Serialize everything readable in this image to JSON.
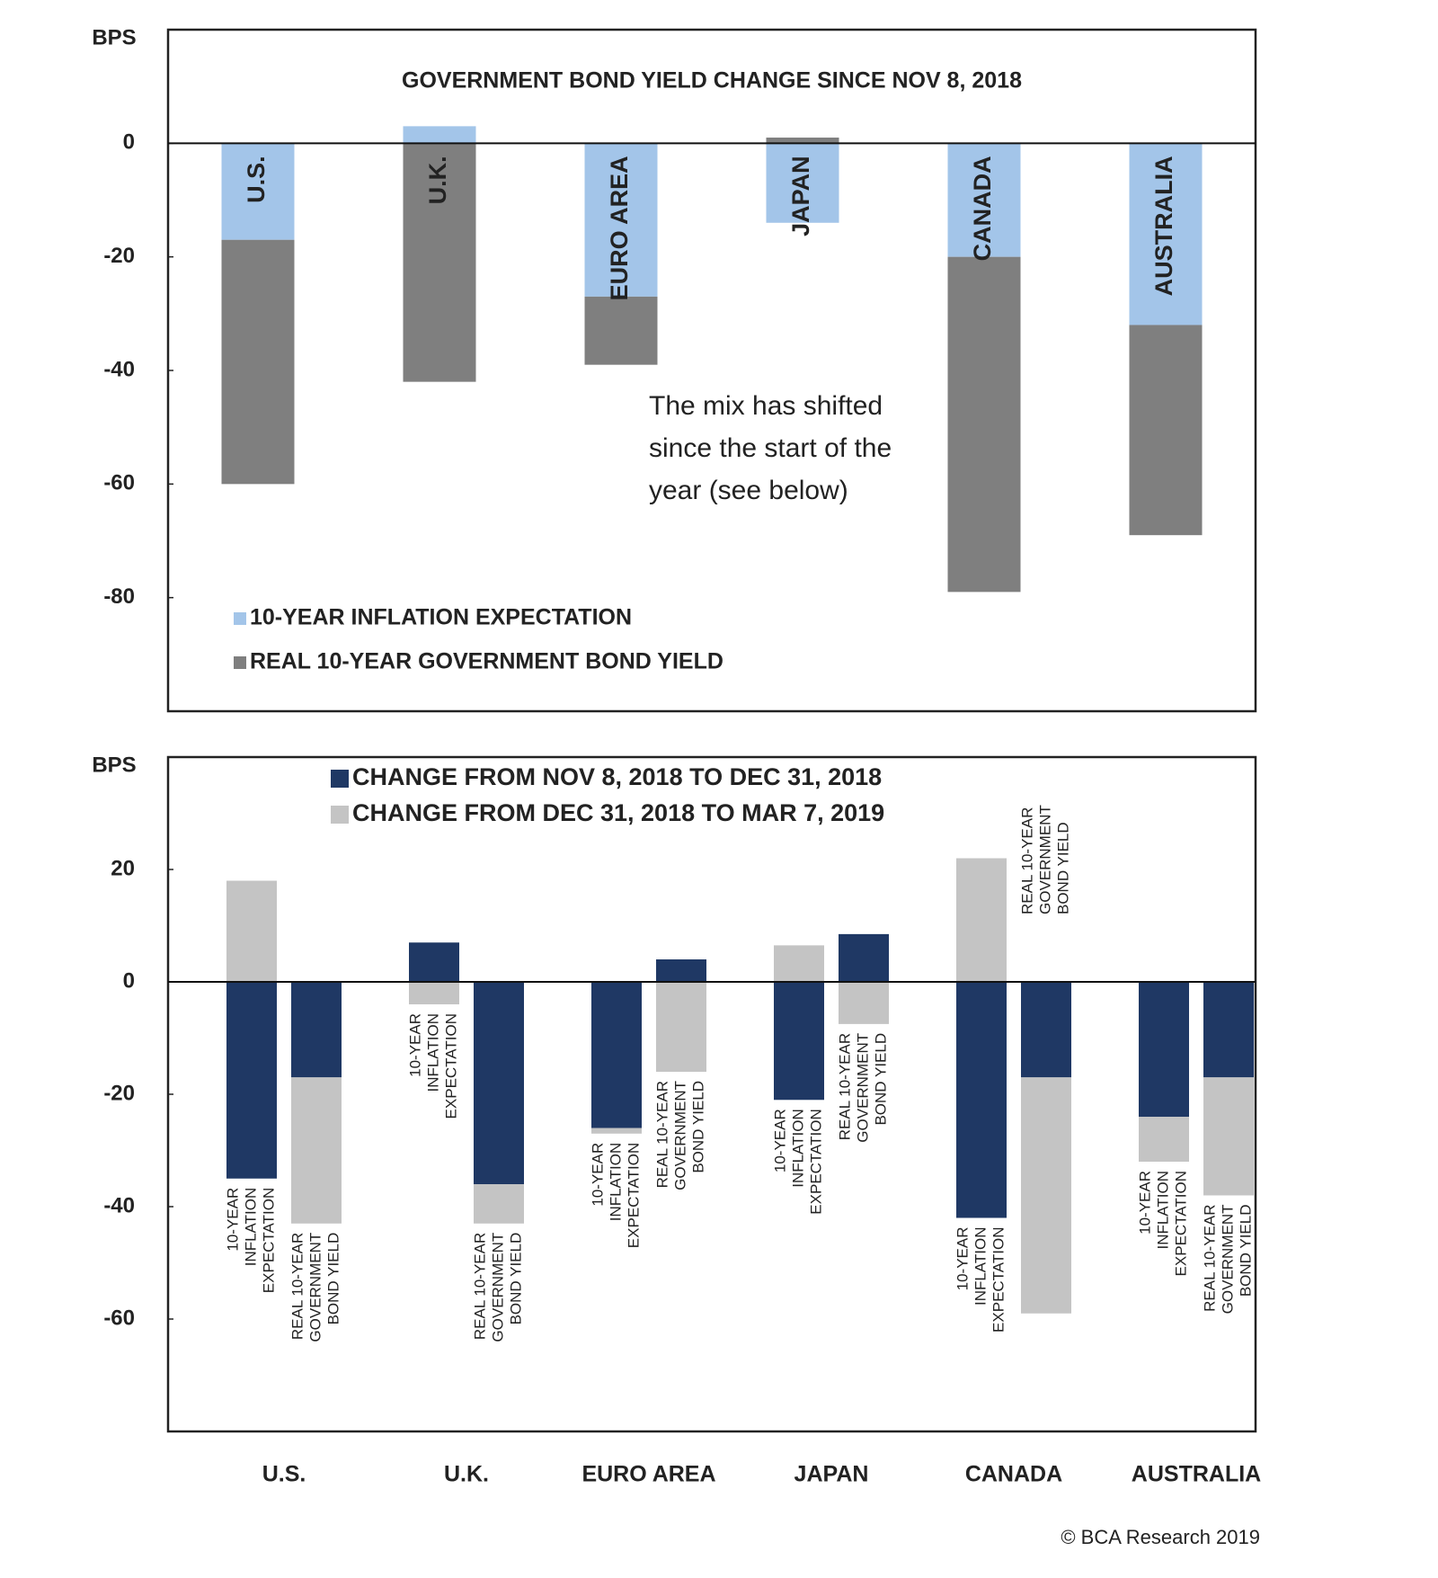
{
  "chart_data": [
    {
      "type": "bar",
      "stacked": true,
      "title": "GOVERNMENT BOND YIELD CHANGE SINCE NOV 8, 2018",
      "y_label": "BPS",
      "categories": [
        "U.S.",
        "U.K.",
        "EURO AREA",
        "JAPAN",
        "CANADA",
        "AUSTRALIA"
      ],
      "series": [
        {
          "name": "10-YEAR INFLATION EXPECTATION",
          "color": "#a3c5e9",
          "values": [
            -17,
            3,
            -27,
            -14,
            -20,
            -32
          ]
        },
        {
          "name": "REAL 10-YEAR GOVERNMENT BOND YIELD",
          "color": "#7f7f7f",
          "values": [
            -43,
            -42,
            -12,
            1,
            -59,
            -37
          ]
        }
      ],
      "ylim": [
        -100,
        20
      ],
      "yticks": [
        0,
        -20,
        -40,
        -60,
        -80
      ],
      "annotation": [
        "The mix has shifted",
        "since the start of the",
        "year (see below)"
      ],
      "annotation_color": "#e8202a"
    },
    {
      "type": "bar",
      "stacked": true,
      "y_label": "BPS",
      "categories": [
        "U.S.",
        "U.K.",
        "EURO AREA",
        "JAPAN",
        "CANADA",
        "AUSTRALIA"
      ],
      "bar_labels": [
        [
          "10-YEAR",
          "INFLATION",
          "EXPECTATION"
        ],
        [
          "REAL 10-YEAR",
          "GOVERNMENT",
          "BOND YIELD"
        ]
      ],
      "series": [
        {
          "name": "CHANGE FROM NOV 8, 2018 TO DEC 31, 2018",
          "color": "#1f3864",
          "values": [
            [
              -35,
              -17
            ],
            [
              7,
              -36
            ],
            [
              -26,
              4
            ],
            [
              -21,
              8.5
            ],
            [
              -42,
              -17
            ],
            [
              -24,
              -17
            ]
          ]
        },
        {
          "name": "CHANGE FROM DEC 31, 2018 TO MAR 7, 2019",
          "color": "#c4c4c4",
          "values": [
            [
              18,
              -26
            ],
            [
              -4,
              -7
            ],
            [
              -1,
              -16
            ],
            [
              6.5,
              -7.5
            ],
            [
              22,
              -42
            ],
            [
              -8,
              -21
            ]
          ]
        }
      ],
      "ylim": [
        -80,
        40
      ],
      "yticks": [
        20,
        0,
        -20,
        -40,
        -60
      ]
    }
  ],
  "footer": "© BCA Research 2019"
}
